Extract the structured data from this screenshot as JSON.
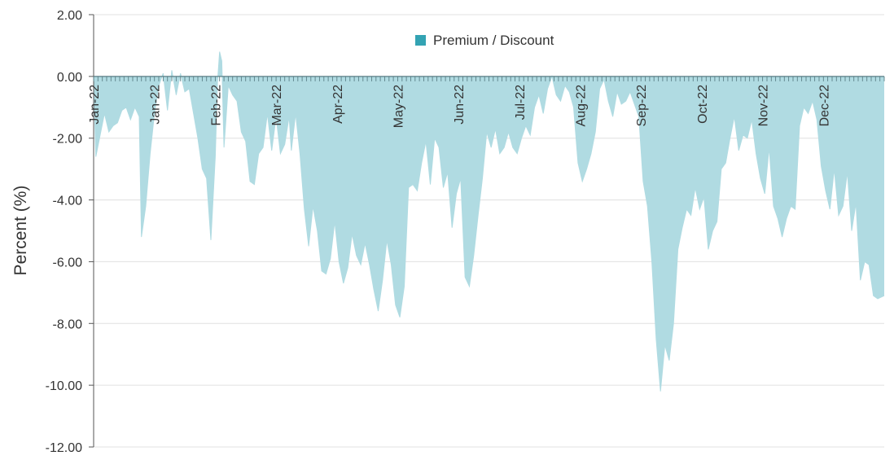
{
  "chart_data": {
    "type": "area",
    "ylabel": "Percent (%)",
    "ylim": [
      -12,
      2
    ],
    "yticks": [
      "2.00",
      "0.00",
      "-2.00",
      "-4.00",
      "-6.00",
      "-8.00",
      "-10.00",
      "-12.00"
    ],
    "ytick_values": [
      2,
      0,
      -2,
      -4,
      -6,
      -8,
      -10,
      -12
    ],
    "xlim": [
      "2022-01-01",
      "2022-12-31"
    ],
    "x_tick_labels": [
      "Jan-22",
      "Jan-22",
      "Feb-22",
      "Mar-22",
      "Apr-22",
      "May-22",
      "Jun-22",
      "Jul-22",
      "Aug-22",
      "Sep-22",
      "Oct-22",
      "Nov-22",
      "Dec-22"
    ],
    "x_tick_dates": [
      "2022-01-01",
      "2022-01-29",
      "2022-02-26",
      "2022-03-26",
      "2022-04-23",
      "2022-05-21",
      "2022-06-18",
      "2022-07-16",
      "2022-08-13",
      "2022-09-10",
      "2022-10-08",
      "2022-11-05",
      "2022-12-03"
    ],
    "legend": {
      "position": "top",
      "entries": [
        {
          "name": "Premium / Discount",
          "color": "#33a3b3"
        }
      ]
    },
    "grid": {
      "horizontal": true,
      "vertical": false
    },
    "colors": {
      "fill": "#b0dbe2",
      "line": "#5fb8c4",
      "legend_swatch": "#33a3b3",
      "grid": "#e0e0e0",
      "axis": "#555555"
    },
    "series": [
      {
        "name": "Premium / Discount",
        "points": [
          [
            "2022-01-01",
            -0.2
          ],
          [
            "2022-01-02",
            -2.6
          ],
          [
            "2022-01-04",
            -1.9
          ],
          [
            "2022-01-06",
            -1.2
          ],
          [
            "2022-01-08",
            -1.8
          ],
          [
            "2022-01-10",
            -1.6
          ],
          [
            "2022-01-12",
            -1.5
          ],
          [
            "2022-01-14",
            -1.1
          ],
          [
            "2022-01-16",
            -1.0
          ],
          [
            "2022-01-18",
            -1.4
          ],
          [
            "2022-01-20",
            -1.0
          ],
          [
            "2022-01-22",
            -1.3
          ],
          [
            "2022-01-23",
            -5.2
          ],
          [
            "2022-01-25",
            -4.2
          ],
          [
            "2022-01-27",
            -2.5
          ],
          [
            "2022-01-29",
            -1.2
          ],
          [
            "2022-01-31",
            -0.3
          ],
          [
            "2022-02-02",
            0.1
          ],
          [
            "2022-02-04",
            -1.1
          ],
          [
            "2022-02-06",
            0.2
          ],
          [
            "2022-02-08",
            -0.6
          ],
          [
            "2022-02-10",
            0.1
          ],
          [
            "2022-02-12",
            -0.5
          ],
          [
            "2022-02-14",
            -0.4
          ],
          [
            "2022-02-16",
            -1.2
          ],
          [
            "2022-02-18",
            -2.0
          ],
          [
            "2022-02-20",
            -3.0
          ],
          [
            "2022-02-22",
            -3.3
          ],
          [
            "2022-02-24",
            -5.3
          ],
          [
            "2022-02-26",
            -2.6
          ],
          [
            "2022-02-27",
            -0.2
          ],
          [
            "2022-02-28",
            0.8
          ],
          [
            "2022-03-01",
            0.5
          ],
          [
            "2022-03-02",
            -2.3
          ],
          [
            "2022-03-04",
            -0.3
          ],
          [
            "2022-03-06",
            -0.6
          ],
          [
            "2022-03-08",
            -0.8
          ],
          [
            "2022-03-10",
            -1.8
          ],
          [
            "2022-03-12",
            -2.1
          ],
          [
            "2022-03-14",
            -3.4
          ],
          [
            "2022-03-16",
            -3.5
          ],
          [
            "2022-03-18",
            -2.5
          ],
          [
            "2022-03-20",
            -2.3
          ],
          [
            "2022-03-22",
            -1.2
          ],
          [
            "2022-03-24",
            -2.4
          ],
          [
            "2022-03-26",
            -1.3
          ],
          [
            "2022-03-28",
            -2.5
          ],
          [
            "2022-03-30",
            -2.2
          ],
          [
            "2022-04-01",
            -1.3
          ],
          [
            "2022-04-02",
            -2.4
          ],
          [
            "2022-04-04",
            -1.2
          ],
          [
            "2022-04-06",
            -2.5
          ],
          [
            "2022-04-08",
            -4.3
          ],
          [
            "2022-04-10",
            -5.5
          ],
          [
            "2022-04-12",
            -4.2
          ],
          [
            "2022-04-14",
            -5.0
          ],
          [
            "2022-04-16",
            -6.3
          ],
          [
            "2022-04-18",
            -6.4
          ],
          [
            "2022-04-20",
            -5.9
          ],
          [
            "2022-04-22",
            -4.7
          ],
          [
            "2022-04-24",
            -6.0
          ],
          [
            "2022-04-26",
            -6.7
          ],
          [
            "2022-04-28",
            -6.2
          ],
          [
            "2022-04-30",
            -5.1
          ],
          [
            "2022-05-02",
            -5.8
          ],
          [
            "2022-05-04",
            -6.1
          ],
          [
            "2022-05-06",
            -5.4
          ],
          [
            "2022-05-08",
            -6.1
          ],
          [
            "2022-05-10",
            -6.9
          ],
          [
            "2022-05-12",
            -7.6
          ],
          [
            "2022-05-14",
            -6.6
          ],
          [
            "2022-05-16",
            -5.3
          ],
          [
            "2022-05-18",
            -6.1
          ],
          [
            "2022-05-20",
            -7.4
          ],
          [
            "2022-05-22",
            -7.8
          ],
          [
            "2022-05-24",
            -6.8
          ],
          [
            "2022-05-26",
            -3.6
          ],
          [
            "2022-05-28",
            -3.5
          ],
          [
            "2022-05-30",
            -3.7
          ],
          [
            "2022-06-01",
            -2.8
          ],
          [
            "2022-06-03",
            -2.1
          ],
          [
            "2022-06-05",
            -3.5
          ],
          [
            "2022-06-07",
            -2.0
          ],
          [
            "2022-06-09",
            -2.3
          ],
          [
            "2022-06-11",
            -3.6
          ],
          [
            "2022-06-13",
            -3.1
          ],
          [
            "2022-06-15",
            -4.9
          ],
          [
            "2022-06-17",
            -3.8
          ],
          [
            "2022-06-19",
            -3.3
          ],
          [
            "2022-06-21",
            -6.5
          ],
          [
            "2022-06-23",
            -6.8
          ],
          [
            "2022-06-25",
            -5.8
          ],
          [
            "2022-06-27",
            -4.5
          ],
          [
            "2022-06-29",
            -3.3
          ],
          [
            "2022-07-01",
            -1.8
          ],
          [
            "2022-07-03",
            -2.3
          ],
          [
            "2022-07-05",
            -1.7
          ],
          [
            "2022-07-07",
            -2.5
          ],
          [
            "2022-07-09",
            -2.3
          ],
          [
            "2022-07-11",
            -1.8
          ],
          [
            "2022-07-13",
            -2.3
          ],
          [
            "2022-07-15",
            -2.5
          ],
          [
            "2022-07-17",
            -2.0
          ],
          [
            "2022-07-19",
            -1.6
          ],
          [
            "2022-07-21",
            -1.9
          ],
          [
            "2022-07-23",
            -1.0
          ],
          [
            "2022-07-25",
            -0.6
          ],
          [
            "2022-07-27",
            -1.2
          ],
          [
            "2022-07-29",
            -0.4
          ],
          [
            "2022-07-31",
            0.0
          ],
          [
            "2022-08-02",
            -0.6
          ],
          [
            "2022-08-04",
            -0.8
          ],
          [
            "2022-08-06",
            -0.3
          ],
          [
            "2022-08-08",
            -0.5
          ],
          [
            "2022-08-10",
            -1.0
          ],
          [
            "2022-08-12",
            -2.8
          ],
          [
            "2022-08-14",
            -3.4
          ],
          [
            "2022-08-16",
            -3.0
          ],
          [
            "2022-08-18",
            -2.5
          ],
          [
            "2022-08-20",
            -1.8
          ],
          [
            "2022-08-22",
            -0.4
          ],
          [
            "2022-08-24",
            -0.1
          ],
          [
            "2022-08-26",
            -0.8
          ],
          [
            "2022-08-28",
            -1.3
          ],
          [
            "2022-08-30",
            -0.5
          ],
          [
            "2022-09-01",
            -0.9
          ],
          [
            "2022-09-03",
            -0.8
          ],
          [
            "2022-09-05",
            -0.5
          ],
          [
            "2022-09-07",
            -0.9
          ],
          [
            "2022-09-09",
            -1.3
          ],
          [
            "2022-09-11",
            -3.4
          ],
          [
            "2022-09-13",
            -4.2
          ],
          [
            "2022-09-15",
            -6.0
          ],
          [
            "2022-09-17",
            -8.5
          ],
          [
            "2022-09-19",
            -10.2
          ],
          [
            "2022-09-21",
            -8.7
          ],
          [
            "2022-09-23",
            -9.2
          ],
          [
            "2022-09-25",
            -8.0
          ],
          [
            "2022-09-27",
            -5.6
          ],
          [
            "2022-09-29",
            -4.9
          ],
          [
            "2022-10-01",
            -4.3
          ],
          [
            "2022-10-03",
            -4.5
          ],
          [
            "2022-10-05",
            -3.6
          ],
          [
            "2022-10-07",
            -4.3
          ],
          [
            "2022-10-09",
            -3.9
          ],
          [
            "2022-10-11",
            -5.6
          ],
          [
            "2022-10-13",
            -5.0
          ],
          [
            "2022-10-15",
            -4.7
          ],
          [
            "2022-10-17",
            -3.0
          ],
          [
            "2022-10-19",
            -2.8
          ],
          [
            "2022-10-21",
            -2.0
          ],
          [
            "2022-10-23",
            -1.3
          ],
          [
            "2022-10-25",
            -2.4
          ],
          [
            "2022-10-27",
            -1.9
          ],
          [
            "2022-10-29",
            -2.0
          ],
          [
            "2022-10-31",
            -1.4
          ],
          [
            "2022-11-02",
            -2.5
          ],
          [
            "2022-11-04",
            -3.3
          ],
          [
            "2022-11-06",
            -3.8
          ],
          [
            "2022-11-08",
            -2.3
          ],
          [
            "2022-11-10",
            -4.2
          ],
          [
            "2022-11-12",
            -4.6
          ],
          [
            "2022-11-14",
            -5.2
          ],
          [
            "2022-11-16",
            -4.6
          ],
          [
            "2022-11-18",
            -4.2
          ],
          [
            "2022-11-20",
            -4.3
          ],
          [
            "2022-11-22",
            -1.6
          ],
          [
            "2022-11-24",
            -1.0
          ],
          [
            "2022-11-26",
            -1.2
          ],
          [
            "2022-11-28",
            -0.8
          ],
          [
            "2022-11-30",
            -1.4
          ],
          [
            "2022-12-02",
            -2.9
          ],
          [
            "2022-12-04",
            -3.7
          ],
          [
            "2022-12-06",
            -4.3
          ],
          [
            "2022-12-08",
            -3.0
          ],
          [
            "2022-12-10",
            -4.5
          ],
          [
            "2022-12-12",
            -4.2
          ],
          [
            "2022-12-14",
            -3.1
          ],
          [
            "2022-12-16",
            -5.0
          ],
          [
            "2022-12-18",
            -4.1
          ],
          [
            "2022-12-20",
            -6.6
          ],
          [
            "2022-12-22",
            -6.0
          ],
          [
            "2022-12-24",
            -6.1
          ],
          [
            "2022-12-26",
            -7.1
          ],
          [
            "2022-12-28",
            -7.2
          ],
          [
            "2022-12-31",
            -7.1
          ]
        ]
      }
    ]
  }
}
